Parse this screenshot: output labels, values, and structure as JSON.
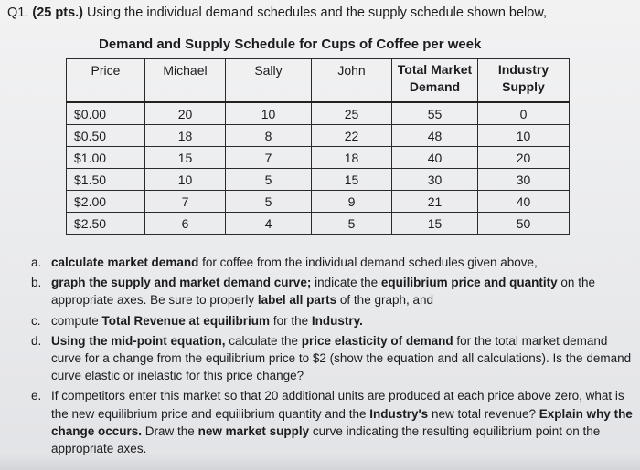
{
  "header": {
    "number": "Q1.",
    "points": "(25 pts.)",
    "text": "Using the individual demand schedules and the supply schedule shown below,"
  },
  "table": {
    "title": "Demand and Supply Schedule for Cups of Coffee per week",
    "columns": {
      "price": "Price",
      "michael": "Michael",
      "sally": "Sally",
      "john": "John",
      "total_1": "Total Market",
      "total_2": "Demand",
      "supply_1": "Industry",
      "supply_2": "Supply"
    },
    "rows": [
      {
        "price": "$0.00",
        "michael": "20",
        "sally": "10",
        "john": "25",
        "total": "55",
        "supply": "0"
      },
      {
        "price": "$0.50",
        "michael": "18",
        "sally": "8",
        "john": "22",
        "total": "48",
        "supply": "10"
      },
      {
        "price": "$1.00",
        "michael": "15",
        "sally": "7",
        "john": "18",
        "total": "40",
        "supply": "20"
      },
      {
        "price": "$1.50",
        "michael": "10",
        "sally": "5",
        "john": "15",
        "total": "30",
        "supply": "30"
      },
      {
        "price": "$2.00",
        "michael": "7",
        "sally": "5",
        "john": "9",
        "total": "21",
        "supply": "40"
      },
      {
        "price": "$2.50",
        "michael": "6",
        "sally": "4",
        "john": "5",
        "total": "15",
        "supply": "50"
      }
    ]
  },
  "tasks": {
    "a": {
      "marker": "a.",
      "p1": "calculate market demand",
      "p2": " for coffee from the individual demand schedules given above,"
    },
    "b": {
      "marker": "b.",
      "p1": "graph the supply and market demand curve;",
      "p2": " indicate the ",
      "p3": "equilibrium price and quantity",
      "p4": " on the appropriate axes.  Be sure to properly ",
      "p5": "label all parts",
      "p6": " of the graph, and"
    },
    "c": {
      "marker": "c.",
      "p1": "compute ",
      "p2": "Total Revenue at equilibrium",
      "p3": " for the ",
      "p4": "Industry."
    },
    "d": {
      "marker": "d.",
      "p1": "Using the mid-point equation,",
      "p2": " calculate the ",
      "p3": "price elasticity of demand",
      "p4": " for the total market demand curve for a change from the equilibrium price to $2 (show the equation and all calculations). Is the demand curve elastic or inelastic for this price change?"
    },
    "e": {
      "marker": "e.",
      "p1": "If competitors enter this market so that 20 additional units are produced at each price above zero, what is the new equilibrium price and equilibrium quantity and the ",
      "p2": "Industry's",
      "p3": " new total revenue? ",
      "p4": "Explain why the change occurs.",
      "p5": " Draw the ",
      "p6": "new market supply",
      "p7": " curve indicating the resulting equilibrium point on the appropriate axes."
    }
  }
}
